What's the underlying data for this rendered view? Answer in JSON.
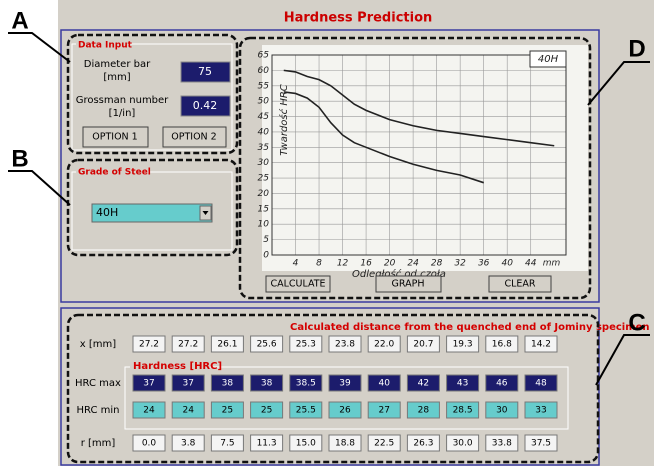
{
  "title": "Hardness Prediction",
  "callouts": [
    "A",
    "B",
    "C",
    "D"
  ],
  "data_input": {
    "legend": "Data Input",
    "diameter_label": [
      "Diameter bar",
      "[mm]"
    ],
    "diameter_value": "75",
    "grossman_label": [
      "Grossman number",
      "[1/in]"
    ],
    "grossman_value": "0.42",
    "buttons": [
      "OPTION 1",
      "OPTION 2"
    ]
  },
  "grade": {
    "legend": "Grade of Steel",
    "selected": "40H"
  },
  "chart_data": {
    "type": "line",
    "label": "40H",
    "ylabel": "Twardość HRC",
    "xlabel": "Odległość od czoła",
    "x_unit": "mm",
    "x": [
      2,
      4,
      6,
      8,
      10,
      12,
      14,
      16,
      20,
      24,
      28,
      32,
      36,
      40,
      44,
      48
    ],
    "series": [
      {
        "color": "#222222",
        "values": [
          60,
          59.5,
          58,
          57,
          55,
          52,
          49,
          47,
          44,
          42,
          40.5,
          39.5,
          38.5,
          37.5,
          36.5,
          35.5
        ]
      },
      {
        "color": "#222222",
        "values": [
          53,
          52.5,
          51,
          48,
          43,
          39,
          36.5,
          35,
          32,
          29.5,
          27.5,
          26,
          23.5,
          null,
          null,
          null
        ]
      }
    ],
    "xlim": [
      0,
      50
    ],
    "ylim": [
      0,
      65
    ],
    "xticks": [
      4,
      8,
      12,
      16,
      20,
      24,
      28,
      32,
      36,
      40,
      44
    ],
    "yticks": [
      0,
      5,
      10,
      15,
      20,
      25,
      30,
      35,
      40,
      45,
      50,
      55,
      60,
      65
    ],
    "grid": true
  },
  "chart_buttons": [
    "CALCULATE",
    "GRAPH",
    "CLEAR"
  ],
  "results": {
    "caption": "Calculated distance from the quenched end of Jominy specimen",
    "hardness_legend": "Hardness [HRC]",
    "rows": [
      {
        "label": "x [mm]",
        "values": [
          "27.2",
          "27.2",
          "26.1",
          "25.6",
          "25.3",
          "23.8",
          "22.0",
          "20.7",
          "19.3",
          "16.8",
          "14.2"
        ]
      },
      {
        "label": "HRC max",
        "values": [
          "37",
          "37",
          "38",
          "38",
          "38.5",
          "39",
          "40",
          "42",
          "43",
          "46",
          "48"
        ]
      },
      {
        "label": "HRC min",
        "values": [
          "24",
          "24",
          "25",
          "25",
          "25.5",
          "26",
          "27",
          "28",
          "28.5",
          "30",
          "33"
        ]
      },
      {
        "label": "r [mm]",
        "values": [
          "0.0",
          "3.8",
          "7.5",
          "11.3",
          "15.0",
          "18.8",
          "22.5",
          "26.3",
          "30.0",
          "33.8",
          "37.5"
        ]
      }
    ]
  }
}
